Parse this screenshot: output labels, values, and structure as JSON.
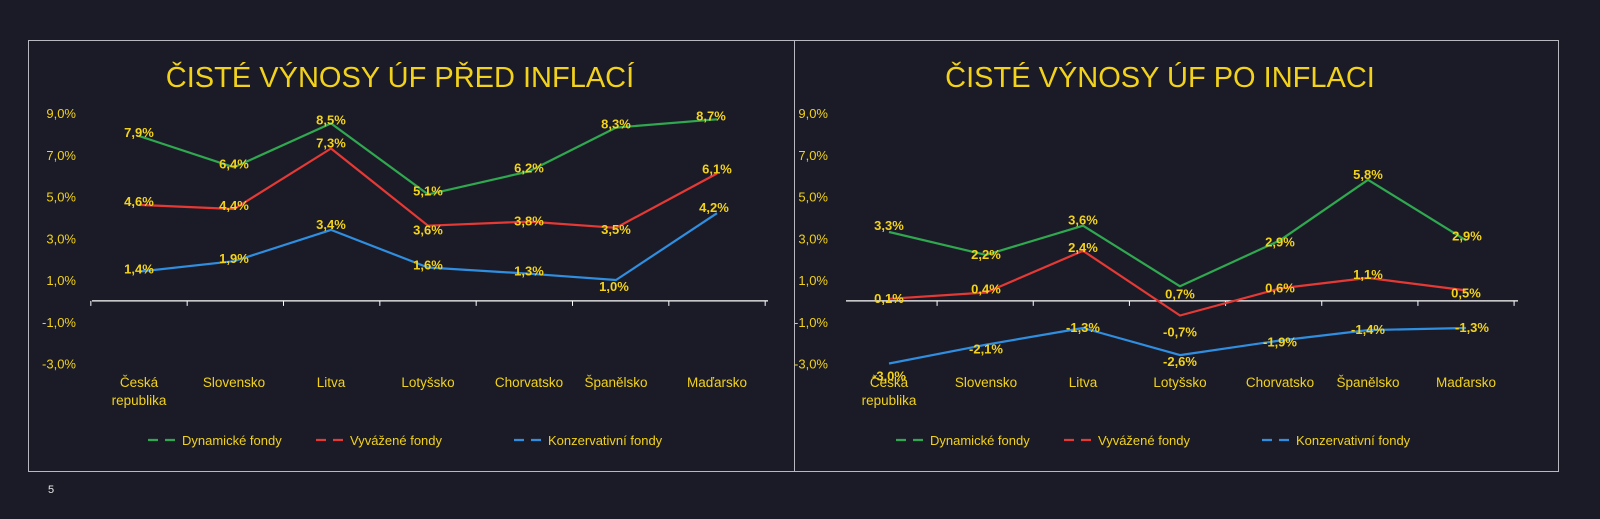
{
  "page_number": "5",
  "colors": {
    "background": "#1b1b27",
    "text": "#f2d21b",
    "axis": "#ffffff",
    "Dynamické fondy": "#2fa84f",
    "Vyvážené fondy": "#e53935",
    "Konzervativní fondy": "#2f8ee0"
  },
  "chart_data": [
    {
      "type": "line",
      "title": "ČISTÉ VÝNOSY ÚF PŘED INFLACÍ",
      "categories": [
        [
          "Česká",
          "republika"
        ],
        [
          "Slovensko"
        ],
        [
          "Litva"
        ],
        [
          "Lotyšsko"
        ],
        [
          "Chorvatsko"
        ],
        [
          "Španělsko"
        ],
        [
          "Maďarsko"
        ]
      ],
      "series": [
        {
          "name": "Dynamické fondy",
          "values": [
            7.9,
            6.4,
            8.5,
            5.1,
            6.2,
            8.3,
            8.7
          ],
          "labels": [
            "7,9%",
            "6,4%",
            "8,5%",
            "5,1%",
            "6,2%",
            "8,3%",
            "8,7%"
          ]
        },
        {
          "name": "Vyvážené fondy",
          "values": [
            4.6,
            4.4,
            7.3,
            3.6,
            3.8,
            3.5,
            6.1
          ],
          "labels": [
            "4,6%",
            "4,4%",
            "7,3%",
            "3,6%",
            "3,8%",
            "3,5%",
            "6,1%"
          ]
        },
        {
          "name": "Konzervativní fondy",
          "values": [
            1.4,
            1.9,
            3.4,
            1.6,
            1.3,
            1.0,
            4.2
          ],
          "labels": [
            "1,4%",
            "1,9%",
            "3,4%",
            "1,6%",
            "1,3%",
            "1,0%",
            "4,2%"
          ]
        }
      ],
      "yticks": [
        "9,0%",
        "7,0%",
        "5,0%",
        "3,0%",
        "1,0%",
        "-1,0%",
        "-3,0%"
      ],
      "ytick_values": [
        9,
        7,
        5,
        3,
        1,
        -1,
        -3
      ],
      "ylim": [
        -3,
        9
      ],
      "legend_position": "bottom",
      "grid": false
    },
    {
      "type": "line",
      "title": "ČISTÉ VÝNOSY ÚF PO INFLACI",
      "categories": [
        [
          "Česká",
          "republika"
        ],
        [
          "Slovensko"
        ],
        [
          "Litva"
        ],
        [
          "Lotyšsko"
        ],
        [
          "Chorvatsko"
        ],
        [
          "Španělsko"
        ],
        [
          "Maďarsko"
        ]
      ],
      "series": [
        {
          "name": "Dynamické fondy",
          "values": [
            3.3,
            2.2,
            3.6,
            0.7,
            2.9,
            5.8,
            2.9
          ],
          "labels": [
            "3,3%",
            "2,2%",
            "3,6%",
            "0,7%",
            "2,9%",
            "5,8%",
            "2,9%"
          ]
        },
        {
          "name": "Vyvážené fondy",
          "values": [
            0.1,
            0.4,
            2.4,
            -0.7,
            0.6,
            1.1,
            0.5
          ],
          "labels": [
            "0,1%",
            "0,4%",
            "2,4%",
            "-0,7%",
            "0,6%",
            "1,1%",
            "0,5%"
          ]
        },
        {
          "name": "Konzervativní fondy",
          "values": [
            -3.0,
            -2.1,
            -1.3,
            -2.6,
            -1.9,
            -1.4,
            -1.3
          ],
          "labels": [
            "-3,0%",
            "-2,1%",
            "-1,3%",
            "-2,6%",
            "-1,9%",
            "-1,4%",
            "-1,3%"
          ]
        }
      ],
      "yticks": [
        "9,0%",
        "7,0%",
        "5,0%",
        "3,0%",
        "1,0%",
        "-1,0%",
        "-3,0%"
      ],
      "ytick_values": [
        9,
        7,
        5,
        3,
        1,
        -1,
        -3
      ],
      "ylim": [
        -3,
        9
      ],
      "legend_position": "bottom",
      "grid": false
    }
  ]
}
